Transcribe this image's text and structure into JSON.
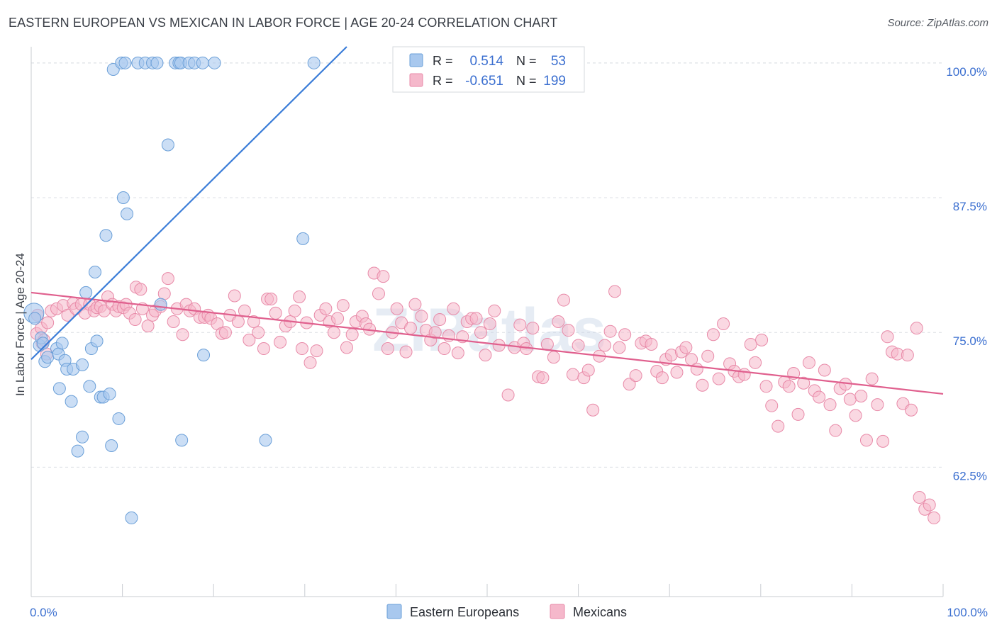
{
  "title": "EASTERN EUROPEAN VS MEXICAN IN LABOR FORCE | AGE 20-24 CORRELATION CHART",
  "source": "Source: ZipAtlas.com",
  "watermark": "ZIPatlas",
  "colors": {
    "blue_fill": "#a8c8ee",
    "blue_stroke": "#6a9fd8",
    "blue_line": "#3b7dd8",
    "pink_fill": "#f5b8cb",
    "pink_stroke": "#e88aa8",
    "pink_line": "#e0608e",
    "value_text": "#3b6fd0",
    "grid": "#dcdfe4"
  },
  "legend_top": {
    "rows": [
      {
        "r_label": "R =",
        "r_value": "0.514",
        "n_label": "N =",
        "n_value": "53",
        "series": "blue"
      },
      {
        "r_label": "R =",
        "r_value": "-0.651",
        "n_label": "N =",
        "n_value": "199",
        "series": "pink"
      }
    ]
  },
  "legend_bottom": {
    "items": [
      {
        "label": "Eastern Europeans",
        "series": "blue"
      },
      {
        "label": "Mexicans",
        "series": "pink"
      }
    ]
  },
  "chart_data": {
    "type": "scatter",
    "title": "EASTERN EUROPEAN VS MEXICAN IN LABOR FORCE | AGE 20-24 CORRELATION CHART",
    "xlabel": "",
    "ylabel": "In Labor Force | Age 20-24",
    "xlim": [
      0,
      100
    ],
    "ylim": [
      50.5,
      101.5
    ],
    "x_tick_labels": [
      "0.0%",
      "100.0%"
    ],
    "y_ticks": [
      62.5,
      75.0,
      87.5,
      100.0
    ],
    "y_tick_labels": [
      "62.5%",
      "75.0%",
      "87.5%",
      "100.0%"
    ],
    "grid": true,
    "series": [
      {
        "name": "Eastern Europeans",
        "R": 0.514,
        "N": 53,
        "trend": {
          "x": [
            0,
            34.6
          ],
          "y": [
            72.5,
            101.5
          ]
        },
        "points": [
          [
            0.3,
            76.8
          ],
          [
            0.4,
            76.3
          ],
          [
            0.9,
            73.8
          ],
          [
            1.1,
            74.5
          ],
          [
            1.3,
            74.0
          ],
          [
            1.5,
            72.3
          ],
          [
            1.8,
            72.7
          ],
          [
            2.8,
            73.5
          ],
          [
            3.0,
            73.0
          ],
          [
            3.1,
            69.8
          ],
          [
            3.4,
            74.0
          ],
          [
            3.7,
            72.4
          ],
          [
            3.9,
            71.6
          ],
          [
            4.4,
            68.6
          ],
          [
            4.6,
            71.6
          ],
          [
            5.1,
            64.0
          ],
          [
            5.6,
            72.0
          ],
          [
            5.6,
            65.3
          ],
          [
            6.0,
            78.7
          ],
          [
            6.4,
            70.0
          ],
          [
            6.6,
            73.5
          ],
          [
            7.0,
            80.6
          ],
          [
            7.2,
            74.2
          ],
          [
            7.6,
            69.0
          ],
          [
            7.9,
            69.0
          ],
          [
            8.2,
            84.0
          ],
          [
            8.6,
            69.3
          ],
          [
            8.8,
            64.5
          ],
          [
            9.0,
            99.4
          ],
          [
            9.6,
            67.0
          ],
          [
            9.9,
            100.0
          ],
          [
            10.1,
            87.5
          ],
          [
            10.3,
            100.0
          ],
          [
            10.5,
            86.0
          ],
          [
            11.0,
            57.8
          ],
          [
            11.7,
            100.0
          ],
          [
            12.5,
            100.0
          ],
          [
            13.3,
            100.0
          ],
          [
            13.8,
            100.0
          ],
          [
            14.2,
            77.6
          ],
          [
            15.0,
            92.4
          ],
          [
            15.8,
            100.0
          ],
          [
            16.2,
            100.0
          ],
          [
            16.4,
            100.0
          ],
          [
            16.5,
            65.0
          ],
          [
            17.3,
            100.0
          ],
          [
            17.9,
            100.0
          ],
          [
            18.8,
            100.0
          ],
          [
            18.9,
            72.9
          ],
          [
            20.1,
            100.0
          ],
          [
            25.7,
            65.0
          ],
          [
            29.8,
            83.7
          ],
          [
            31.0,
            100.0
          ]
        ]
      },
      {
        "name": "Mexicans",
        "R": -0.651,
        "N": 199,
        "trend": {
          "x": [
            0,
            100
          ],
          "y": [
            78.7,
            69.3
          ]
        },
        "points": [
          [
            0.6,
            74.9
          ],
          [
            0.7,
            76.6
          ],
          [
            1.1,
            75.4
          ],
          [
            1.2,
            74.0
          ],
          [
            1.4,
            74.3
          ],
          [
            1.7,
            73.0
          ],
          [
            1.8,
            75.9
          ],
          [
            2.2,
            77.0
          ],
          [
            2.8,
            77.2
          ],
          [
            3.5,
            77.5
          ],
          [
            4.0,
            76.6
          ],
          [
            4.6,
            77.7
          ],
          [
            4.9,
            77.2
          ],
          [
            5.5,
            77.6
          ],
          [
            5.9,
            76.8
          ],
          [
            6.4,
            77.6
          ],
          [
            6.9,
            77.0
          ],
          [
            7.2,
            77.3
          ],
          [
            7.6,
            77.4
          ],
          [
            8.0,
            77.0
          ],
          [
            8.4,
            78.3
          ],
          [
            8.9,
            77.6
          ],
          [
            9.3,
            77.0
          ],
          [
            9.6,
            77.4
          ],
          [
            10.1,
            77.3
          ],
          [
            10.4,
            77.6
          ],
          [
            10.8,
            76.8
          ],
          [
            11.4,
            76.2
          ],
          [
            11.5,
            79.2
          ],
          [
            12.0,
            79.0
          ],
          [
            12.2,
            77.2
          ],
          [
            12.8,
            75.6
          ],
          [
            13.3,
            76.6
          ],
          [
            13.6,
            77.0
          ],
          [
            14.2,
            77.4
          ],
          [
            14.6,
            78.6
          ],
          [
            15.0,
            80.0
          ],
          [
            15.6,
            76.0
          ],
          [
            16.0,
            77.2
          ],
          [
            16.6,
            74.8
          ],
          [
            17.0,
            77.6
          ],
          [
            17.4,
            77.0
          ],
          [
            17.9,
            77.2
          ],
          [
            18.5,
            76.4
          ],
          [
            19.0,
            76.4
          ],
          [
            19.4,
            76.6
          ],
          [
            19.7,
            76.3
          ],
          [
            20.4,
            75.8
          ],
          [
            20.9,
            74.9
          ],
          [
            21.3,
            75.0
          ],
          [
            21.8,
            76.6
          ],
          [
            22.3,
            78.4
          ],
          [
            22.7,
            76.0
          ],
          [
            23.4,
            77.0
          ],
          [
            23.9,
            74.3
          ],
          [
            24.4,
            76.0
          ],
          [
            24.9,
            75.0
          ],
          [
            25.5,
            73.5
          ],
          [
            25.9,
            78.1
          ],
          [
            26.3,
            78.1
          ],
          [
            26.8,
            76.8
          ],
          [
            27.3,
            74.1
          ],
          [
            27.9,
            75.6
          ],
          [
            28.4,
            76.0
          ],
          [
            28.9,
            77.0
          ],
          [
            29.4,
            78.3
          ],
          [
            29.7,
            73.5
          ],
          [
            30.2,
            75.9
          ],
          [
            30.6,
            72.2
          ],
          [
            31.3,
            73.3
          ],
          [
            31.7,
            76.6
          ],
          [
            32.3,
            77.2
          ],
          [
            32.7,
            76.0
          ],
          [
            33.2,
            75.0
          ],
          [
            33.6,
            76.3
          ],
          [
            34.2,
            77.5
          ],
          [
            34.6,
            73.6
          ],
          [
            35.2,
            74.8
          ],
          [
            35.6,
            76.0
          ],
          [
            36.3,
            76.5
          ],
          [
            36.7,
            75.8
          ],
          [
            37.1,
            75.3
          ],
          [
            37.6,
            80.5
          ],
          [
            38.1,
            78.6
          ],
          [
            38.6,
            80.2
          ],
          [
            39.1,
            73.5
          ],
          [
            39.6,
            75.0
          ],
          [
            40.1,
            77.2
          ],
          [
            40.6,
            75.9
          ],
          [
            41.1,
            73.2
          ],
          [
            41.6,
            75.4
          ],
          [
            42.1,
            77.6
          ],
          [
            42.8,
            76.5
          ],
          [
            43.3,
            75.2
          ],
          [
            43.8,
            74.3
          ],
          [
            44.3,
            75.0
          ],
          [
            44.8,
            76.2
          ],
          [
            45.3,
            73.5
          ],
          [
            45.8,
            74.7
          ],
          [
            46.3,
            77.2
          ],
          [
            46.8,
            73.1
          ],
          [
            47.3,
            74.6
          ],
          [
            47.8,
            76.0
          ],
          [
            48.3,
            76.3
          ],
          [
            48.8,
            76.3
          ],
          [
            49.3,
            75.0
          ],
          [
            49.8,
            72.9
          ],
          [
            50.3,
            75.8
          ],
          [
            50.8,
            77.0
          ],
          [
            51.3,
            73.8
          ],
          [
            52.3,
            69.2
          ],
          [
            53.0,
            73.6
          ],
          [
            53.6,
            75.7
          ],
          [
            54.0,
            74.0
          ],
          [
            54.3,
            73.5
          ],
          [
            55.0,
            75.4
          ],
          [
            55.6,
            70.9
          ],
          [
            56.1,
            70.8
          ],
          [
            56.6,
            73.9
          ],
          [
            57.3,
            72.7
          ],
          [
            57.8,
            76.0
          ],
          [
            58.4,
            78.0
          ],
          [
            58.9,
            75.2
          ],
          [
            59.4,
            71.1
          ],
          [
            60.0,
            73.8
          ],
          [
            60.6,
            70.8
          ],
          [
            61.1,
            71.5
          ],
          [
            61.6,
            67.8
          ],
          [
            62.3,
            72.8
          ],
          [
            62.9,
            73.8
          ],
          [
            63.5,
            75.1
          ],
          [
            64.0,
            78.8
          ],
          [
            64.5,
            73.6
          ],
          [
            65.1,
            74.8
          ],
          [
            65.6,
            70.2
          ],
          [
            66.3,
            71.0
          ],
          [
            66.9,
            74.0
          ],
          [
            67.4,
            74.2
          ],
          [
            68.0,
            73.9
          ],
          [
            68.6,
            71.4
          ],
          [
            69.2,
            70.8
          ],
          [
            69.6,
            72.5
          ],
          [
            70.2,
            72.9
          ],
          [
            70.8,
            71.3
          ],
          [
            71.3,
            73.2
          ],
          [
            71.8,
            73.6
          ],
          [
            72.4,
            72.5
          ],
          [
            73.0,
            71.6
          ],
          [
            73.6,
            70.1
          ],
          [
            74.2,
            72.8
          ],
          [
            74.8,
            74.8
          ],
          [
            75.4,
            70.7
          ],
          [
            75.9,
            75.8
          ],
          [
            76.6,
            72.1
          ],
          [
            77.1,
            71.4
          ],
          [
            77.6,
            70.9
          ],
          [
            78.2,
            71.1
          ],
          [
            78.9,
            73.9
          ],
          [
            79.4,
            72.2
          ],
          [
            80.1,
            74.3
          ],
          [
            80.6,
            70.0
          ],
          [
            81.2,
            68.2
          ],
          [
            81.9,
            66.3
          ],
          [
            82.6,
            70.4
          ],
          [
            83.1,
            70.0
          ],
          [
            83.6,
            71.2
          ],
          [
            84.1,
            67.4
          ],
          [
            84.7,
            70.3
          ],
          [
            85.3,
            72.2
          ],
          [
            85.9,
            69.6
          ],
          [
            86.4,
            69.0
          ],
          [
            87.0,
            71.5
          ],
          [
            87.6,
            68.3
          ],
          [
            88.2,
            65.9
          ],
          [
            88.7,
            69.8
          ],
          [
            89.3,
            70.2
          ],
          [
            89.8,
            68.8
          ],
          [
            90.4,
            67.3
          ],
          [
            91.0,
            69.1
          ],
          [
            91.6,
            65.0
          ],
          [
            92.2,
            70.7
          ],
          [
            92.8,
            68.3
          ],
          [
            93.4,
            64.9
          ],
          [
            93.9,
            74.6
          ],
          [
            94.4,
            73.2
          ],
          [
            95.0,
            73.0
          ],
          [
            95.6,
            68.4
          ],
          [
            96.1,
            72.9
          ],
          [
            96.5,
            67.8
          ],
          [
            97.1,
            75.4
          ],
          [
            97.4,
            59.7
          ],
          [
            98.0,
            58.6
          ],
          [
            98.5,
            59.0
          ],
          [
            99.0,
            57.8
          ]
        ]
      }
    ]
  }
}
